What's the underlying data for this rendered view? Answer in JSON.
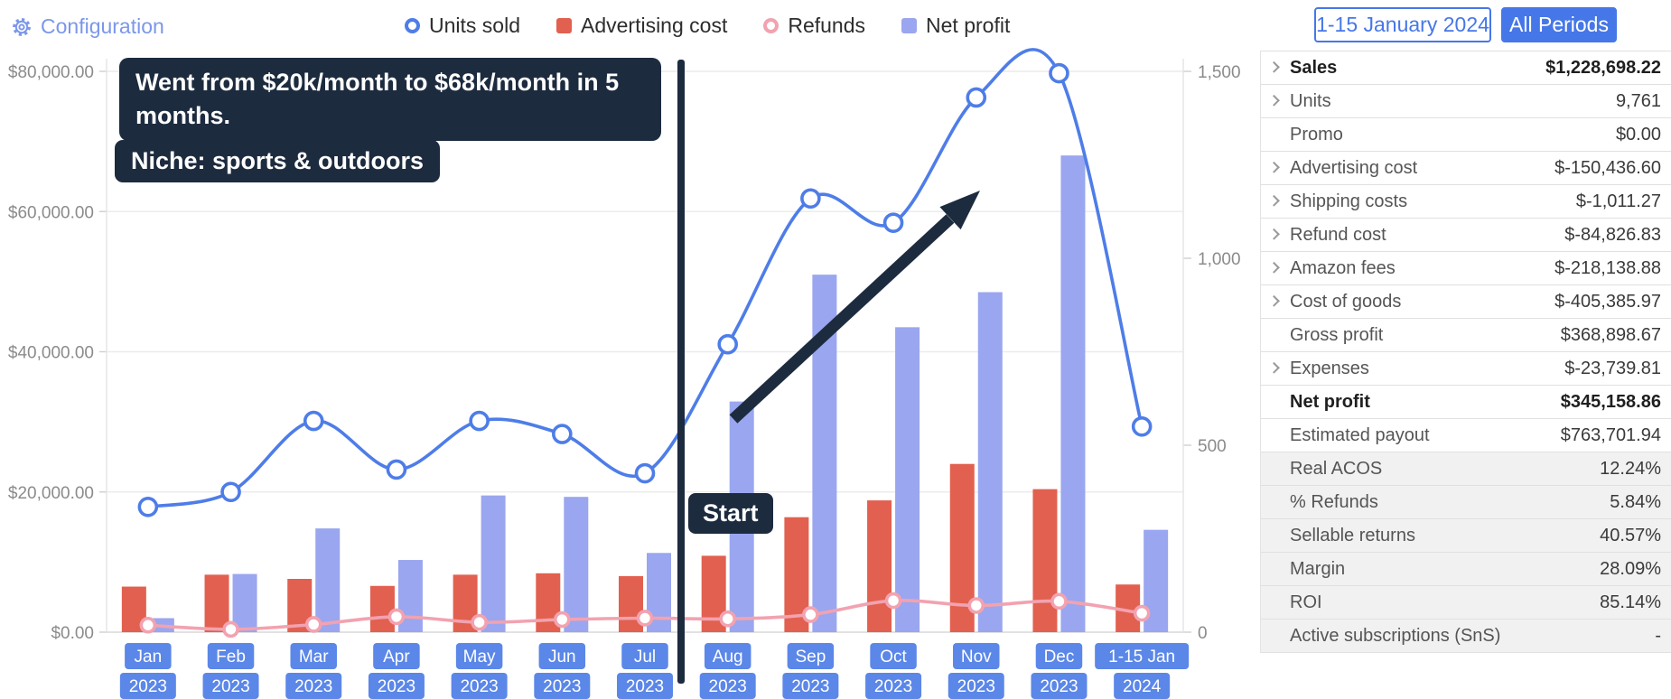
{
  "header": {
    "configuration_label": "Configuration",
    "period_button": "1-15 January 2024",
    "all_periods_button": "All Periods"
  },
  "legend": [
    {
      "label": "Units sold",
      "marker": "circle",
      "color": "#4e7de8"
    },
    {
      "label": "Advertising cost",
      "marker": "square",
      "color": "#e2604f"
    },
    {
      "label": "Refunds",
      "marker": "circle",
      "color": "#f2a2b0"
    },
    {
      "label": "Net profit",
      "marker": "square",
      "color": "#9aa6ef"
    }
  ],
  "annotations": {
    "growth": "Went from $20k/month to $68k/month in 5 months.",
    "niche": "Niche: sports & outdoors",
    "start": "Start",
    "box_color": "#1d2b3f"
  },
  "chart_data": {
    "type": "bar+line combo",
    "categories": [
      {
        "line1": "Jan",
        "line2": "2023"
      },
      {
        "line1": "Feb",
        "line2": "2023"
      },
      {
        "line1": "Mar",
        "line2": "2023"
      },
      {
        "line1": "Apr",
        "line2": "2023"
      },
      {
        "line1": "May",
        "line2": "2023"
      },
      {
        "line1": "Jun",
        "line2": "2023"
      },
      {
        "line1": "Jul",
        "line2": "2023"
      },
      {
        "line1": "Aug",
        "line2": "2023"
      },
      {
        "line1": "Sep",
        "line2": "2023"
      },
      {
        "line1": "Oct",
        "line2": "2023"
      },
      {
        "line1": "Nov",
        "line2": "2023"
      },
      {
        "line1": "Dec",
        "line2": "2023"
      },
      {
        "line1": "1-15 Jan",
        "line2": "2024"
      }
    ],
    "series": [
      {
        "name": "Units sold",
        "type": "line",
        "axis": "right",
        "color": "#4e7de8",
        "values": [
          335,
          375,
          565,
          435,
          565,
          530,
          425,
          770,
          1160,
          1095,
          1430,
          1495,
          550
        ]
      },
      {
        "name": "Advertising cost",
        "type": "bar",
        "axis": "left",
        "color": "#e2604f",
        "values": [
          6500,
          8200,
          7600,
          6600,
          8200,
          8400,
          8000,
          10900,
          16400,
          18800,
          24000,
          20400,
          6800
        ]
      },
      {
        "name": "Refunds",
        "type": "line",
        "axis": "left",
        "color": "#f2a2b0",
        "values": [
          1000,
          400,
          1100,
          2200,
          1400,
          1800,
          2000,
          1900,
          2500,
          4500,
          3800,
          4400,
          2700
        ]
      },
      {
        "name": "Net profit",
        "type": "bar",
        "axis": "left",
        "color": "#9aa6ef",
        "values": [
          2000,
          8300,
          14800,
          10300,
          19500,
          19300,
          11300,
          32900,
          51000,
          43500,
          48500,
          68000,
          14600
        ]
      }
    ],
    "left_axis": {
      "min": 0,
      "max": 80000,
      "ticks": [
        {
          "value": 0,
          "label": "$0.00"
        },
        {
          "value": 20000,
          "label": "$20,000.00"
        },
        {
          "value": 40000,
          "label": "$40,000.00"
        },
        {
          "value": 60000,
          "label": "$60,000.00"
        },
        {
          "value": 80000,
          "label": "$80,000.00"
        }
      ]
    },
    "right_axis": {
      "min": 0,
      "max": 1500,
      "ticks": [
        {
          "value": 0,
          "label": "0"
        },
        {
          "value": 500,
          "label": "500"
        },
        {
          "value": 1000,
          "label": "1,000"
        },
        {
          "value": 1500,
          "label": "1,500"
        }
      ]
    },
    "grid": true,
    "legend_position": "top",
    "x_label_chip_color": "#5b87e8",
    "annotation_line_between": [
      "Jul 2023",
      "Aug 2023"
    ]
  },
  "sidebar": {
    "rows": [
      {
        "label": "Sales",
        "value": "$1,228,698.22",
        "chevron": true,
        "bold": true,
        "gray": false
      },
      {
        "label": "Units",
        "value": "9,761",
        "chevron": true,
        "bold": false,
        "gray": false
      },
      {
        "label": "Promo",
        "value": "$0.00",
        "chevron": false,
        "bold": false,
        "gray": false
      },
      {
        "label": "Advertising cost",
        "value": "$-150,436.60",
        "chevron": true,
        "bold": false,
        "gray": false
      },
      {
        "label": "Shipping costs",
        "value": "$-1,011.27",
        "chevron": true,
        "bold": false,
        "gray": false
      },
      {
        "label": "Refund cost",
        "value": "$-84,826.83",
        "chevron": true,
        "bold": false,
        "gray": false
      },
      {
        "label": "Amazon fees",
        "value": "$-218,138.88",
        "chevron": true,
        "bold": false,
        "gray": false
      },
      {
        "label": "Cost of goods",
        "value": "$-405,385.97",
        "chevron": true,
        "bold": false,
        "gray": false
      },
      {
        "label": "Gross profit",
        "value": "$368,898.67",
        "chevron": false,
        "bold": false,
        "gray": false
      },
      {
        "label": "Expenses",
        "value": "$-23,739.81",
        "chevron": true,
        "bold": false,
        "gray": false
      },
      {
        "label": "Net profit",
        "value": "$345,158.86",
        "chevron": false,
        "bold": true,
        "gray": false
      },
      {
        "label": "Estimated payout",
        "value": "$763,701.94",
        "chevron": false,
        "bold": false,
        "gray": false
      },
      {
        "label": "Real ACOS",
        "value": "12.24%",
        "chevron": false,
        "bold": false,
        "gray": true
      },
      {
        "label": "% Refunds",
        "value": "5.84%",
        "chevron": false,
        "bold": false,
        "gray": true
      },
      {
        "label": "Sellable returns",
        "value": "40.57%",
        "chevron": false,
        "bold": false,
        "gray": true
      },
      {
        "label": "Margin",
        "value": "28.09%",
        "chevron": false,
        "bold": false,
        "gray": true
      },
      {
        "label": "ROI",
        "value": "85.14%",
        "chevron": false,
        "bold": false,
        "gray": true
      },
      {
        "label": "Active subscriptions (SnS)",
        "value": "-",
        "chevron": false,
        "bold": false,
        "gray": true
      }
    ]
  }
}
